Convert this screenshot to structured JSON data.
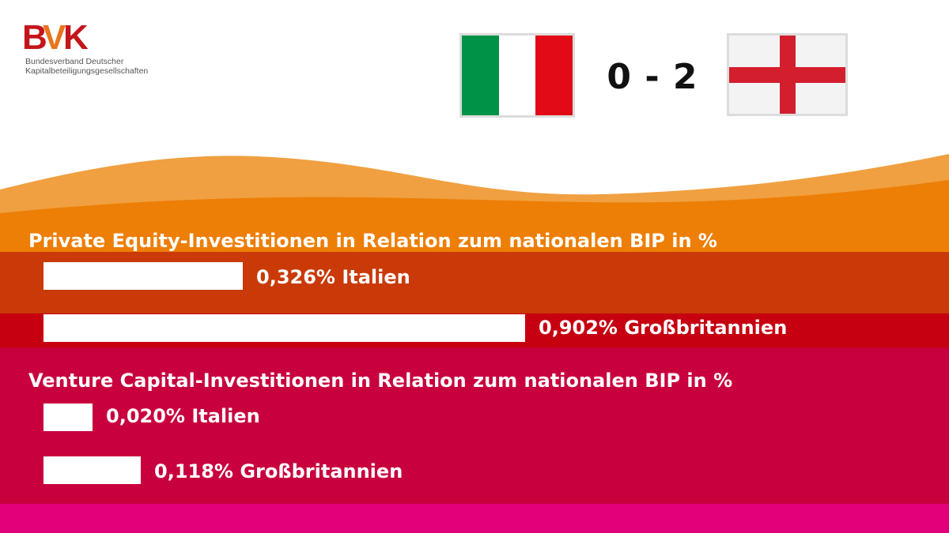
{
  "logo": {
    "mark": "BVK",
    "line1": "Bundesverband Deutscher",
    "line2": "Kapitalbeteiligungsgesellschaften"
  },
  "match": {
    "home_flag": "italy-flag-icon",
    "away_flag": "england-flag-icon",
    "score": "0 - 2"
  },
  "colors": {
    "orange_light": "#F0A040",
    "orange": "#ED7E06",
    "dark_orange": "#C93A08",
    "red": "#C60010",
    "crimson": "#C8003E",
    "magenta": "#E2007A",
    "bar": "#FFFFFF"
  },
  "chart_data": [
    {
      "type": "bar",
      "title": "Private Equity-Investitionen in Relation zum nationalen BIP in %",
      "categories": [
        "Italien",
        "Großbritannien"
      ],
      "values": [
        0.326,
        0.902
      ],
      "labels": [
        "0,326% Italien",
        "0,902% Großbritannien"
      ],
      "ylim": [
        0,
        1.0
      ]
    },
    {
      "type": "bar",
      "title": "Venture Capital-Investitionen in Relation zum nationalen BIP in %",
      "categories": [
        "Italien",
        "Großbritannien"
      ],
      "values": [
        0.02,
        0.118
      ],
      "labels": [
        "0,020% Italien",
        "0,118% Großbritannien"
      ],
      "ylim": [
        0,
        1.0
      ]
    }
  ]
}
